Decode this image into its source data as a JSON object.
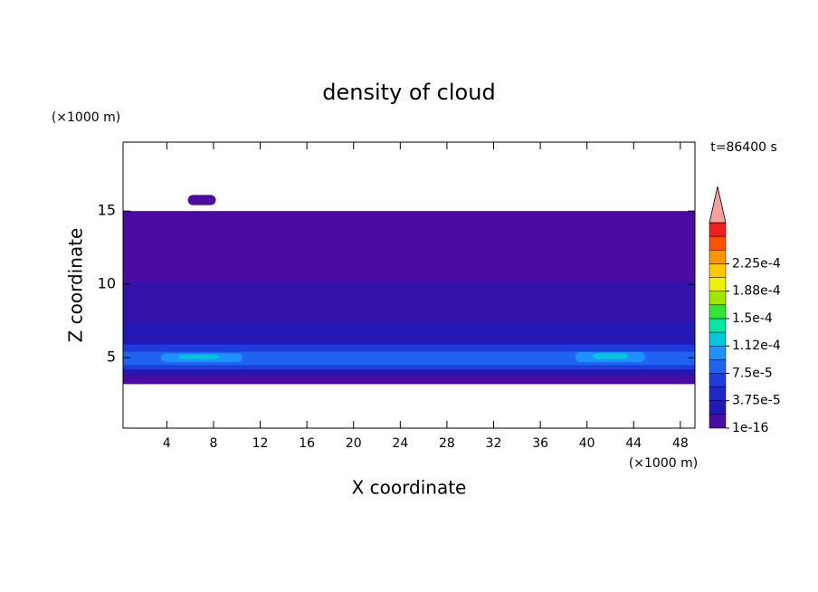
{
  "chart_data": {
    "type": "contour",
    "title": "density of cloud",
    "xlabel": "X coordinate",
    "ylabel": "Z coordinate",
    "xunit": "(×1000 m)",
    "yunit": "(×1000 m)",
    "annotation": "t=86400 s",
    "xlim": [
      0.25,
      49.25
    ],
    "ylim": [
      0.2,
      19.7
    ],
    "xticks": [
      4,
      8,
      12,
      16,
      20,
      24,
      28,
      32,
      36,
      40,
      44,
      48
    ],
    "yticks": [
      5,
      10,
      15
    ],
    "contours": [
      {
        "color": "#4c0ca4",
        "x": [
          0.25,
          49.25
        ],
        "z": [
          3.2,
          15.0
        ]
      },
      {
        "color": "#4c0ca4",
        "x": [
          5.8,
          8.2
        ],
        "z": [
          15.4,
          16.1
        ]
      },
      {
        "color": "#3212a8",
        "x": [
          0.25,
          49.25
        ],
        "z": [
          3.7,
          10.2
        ]
      },
      {
        "color": "#2418b4",
        "x": [
          0.25,
          49.25
        ],
        "z": [
          3.9,
          7.4
        ]
      },
      {
        "color": "#1e3cdc",
        "x": [
          0.25,
          49.25
        ],
        "z": [
          4.2,
          5.9
        ]
      },
      {
        "color": "#1e64f0",
        "x": [
          0.25,
          49.25
        ],
        "z": [
          4.5,
          5.4
        ]
      },
      {
        "color": "#1e90ff",
        "x": [
          3.5,
          10.5
        ],
        "z": [
          4.7,
          5.3
        ]
      },
      {
        "color": "#00c8d8",
        "x": [
          5.0,
          8.5
        ],
        "z": [
          4.9,
          5.2
        ]
      },
      {
        "color": "#1e90ff",
        "x": [
          39.0,
          45.0
        ],
        "z": [
          4.7,
          5.4
        ]
      },
      {
        "color": "#00c8d8",
        "x": [
          40.5,
          43.5
        ],
        "z": [
          4.9,
          5.3
        ]
      }
    ],
    "colorbar": {
      "colors": [
        "#4c0ca4",
        "#2418b4",
        "#1e28c8",
        "#1e3cdc",
        "#1e64f0",
        "#1e90ff",
        "#00c8d8",
        "#00e6a0",
        "#32e632",
        "#a0e600",
        "#f0f000",
        "#ffc800",
        "#ff9600",
        "#ff5000",
        "#f01e1e"
      ],
      "overflow_color": "#f4a0a0",
      "ticks": [
        {
          "value": 1e-16,
          "label": "1e-16"
        },
        {
          "value": 3.75e-05,
          "label": "3.75e-5"
        },
        {
          "value": 7.5e-05,
          "label": "7.5e-5"
        },
        {
          "value": 0.000112,
          "label": "1.12e-4"
        },
        {
          "value": 0.00015,
          "label": "1.5e-4"
        },
        {
          "value": 0.000188,
          "label": "1.88e-4"
        },
        {
          "value": 0.000225,
          "label": "2.25e-4"
        }
      ]
    }
  }
}
